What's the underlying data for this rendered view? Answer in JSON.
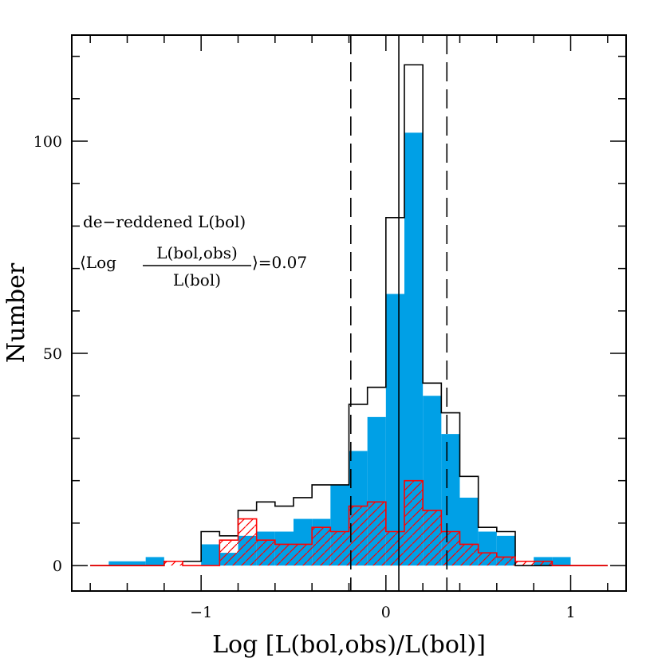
{
  "chart_data": {
    "type": "bar",
    "xlabel": "Log [L(bol,obs)/L(bol)]",
    "ylabel": "Number",
    "xlim": [
      -1.7,
      1.3
    ],
    "ylim": [
      -6,
      125
    ],
    "x_ticks": [
      -1,
      0,
      1
    ],
    "x_tick_labels": [
      "−1",
      "0",
      "1"
    ],
    "y_ticks": [
      0,
      50,
      100
    ],
    "y_tick_labels": [
      "0",
      "50",
      "100"
    ],
    "bin_width": 0.1,
    "bin_left": [
      -1.6,
      -1.5,
      -1.4,
      -1.3,
      -1.2,
      -1.1,
      -1.0,
      -0.9,
      -0.8,
      -0.7,
      -0.6,
      -0.5,
      -0.4,
      -0.3,
      -0.2,
      -0.1,
      0.0,
      0.1,
      0.2,
      0.3,
      0.4,
      0.5,
      0.6,
      0.7,
      0.8,
      0.9,
      1.0,
      1.1
    ],
    "series": [
      {
        "style": "filled",
        "color": "#00a0e6",
        "values": [
          0,
          1,
          1,
          2,
          0,
          0,
          5,
          3,
          7,
          8,
          8,
          11,
          11,
          19,
          27,
          35,
          64,
          102,
          40,
          31,
          16,
          8,
          7,
          0,
          2,
          2,
          0,
          0
        ]
      },
      {
        "style": "outline",
        "color": "#000000",
        "values": [
          0,
          0,
          0,
          0,
          1,
          1,
          8,
          7,
          13,
          15,
          14,
          16,
          19,
          19,
          38,
          42,
          82,
          118,
          43,
          36,
          21,
          9,
          8,
          0,
          0,
          0,
          0,
          0
        ]
      },
      {
        "style": "hatched",
        "color": "#ff0000",
        "values": [
          0,
          0,
          0,
          0,
          1,
          0,
          0,
          6,
          11,
          6,
          5,
          5,
          9,
          8,
          14,
          15,
          8,
          20,
          13,
          8,
          5,
          3,
          2,
          1,
          1,
          0,
          0,
          0
        ]
      }
    ],
    "vlines": [
      {
        "x": 0.07,
        "style": "solid"
      },
      {
        "x": -0.19,
        "style": "dashed"
      },
      {
        "x": 0.33,
        "style": "dashed"
      }
    ],
    "annotations": {
      "line1": "de−reddened L(bol)",
      "bracket_open": "⟨Log",
      "frac_num": "L(bol,obs)",
      "frac_den": "L(bol)",
      "bracket_close": "⟩=0.07"
    }
  }
}
